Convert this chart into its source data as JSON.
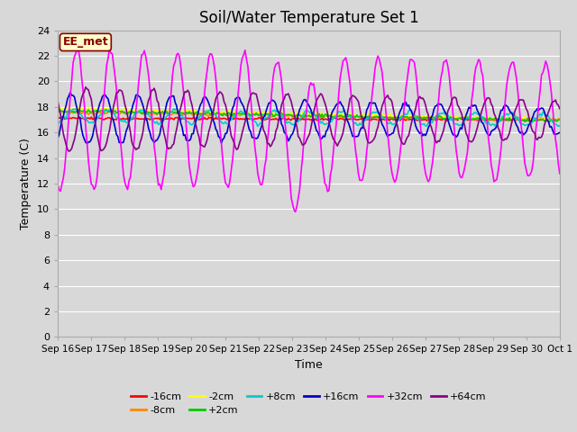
{
  "title": "Soil/Water Temperature Set 1",
  "xlabel": "Time",
  "ylabel": "Temperature (C)",
  "annotation": "EE_met",
  "ylim": [
    0,
    24
  ],
  "yticks": [
    0,
    2,
    4,
    6,
    8,
    10,
    12,
    14,
    16,
    18,
    20,
    22,
    24
  ],
  "x_labels": [
    "Sep 16",
    "Sep 17",
    "Sep 18",
    "Sep 19",
    "Sep 20",
    "Sep 21",
    "Sep 22",
    "Sep 23",
    "Sep 24",
    "Sep 25",
    "Sep 26",
    "Sep 27",
    "Sep 28",
    "Sep 29",
    "Sep 30",
    "Oct 1"
  ],
  "series": [
    {
      "label": "-16cm",
      "color": "#ff0000",
      "lw": 1.2
    },
    {
      "label": "-8cm",
      "color": "#ff8800",
      "lw": 1.2
    },
    {
      "label": "-2cm",
      "color": "#ffff00",
      "lw": 1.2
    },
    {
      "label": "+2cm",
      "color": "#00cc00",
      "lw": 1.2
    },
    {
      "label": "+8cm",
      "color": "#00cccc",
      "lw": 1.2
    },
    {
      "label": "+16cm",
      "color": "#0000cc",
      "lw": 1.2
    },
    {
      "label": "+32cm",
      "color": "#ff00ff",
      "lw": 1.2
    },
    {
      "label": "+64cm",
      "color": "#880088",
      "lw": 1.2
    }
  ],
  "bg_color": "#d8d8d8",
  "plot_bg_color": "#d8d8d8",
  "grid_color": "#ffffff",
  "legend_fontsize": 8,
  "title_fontsize": 12
}
